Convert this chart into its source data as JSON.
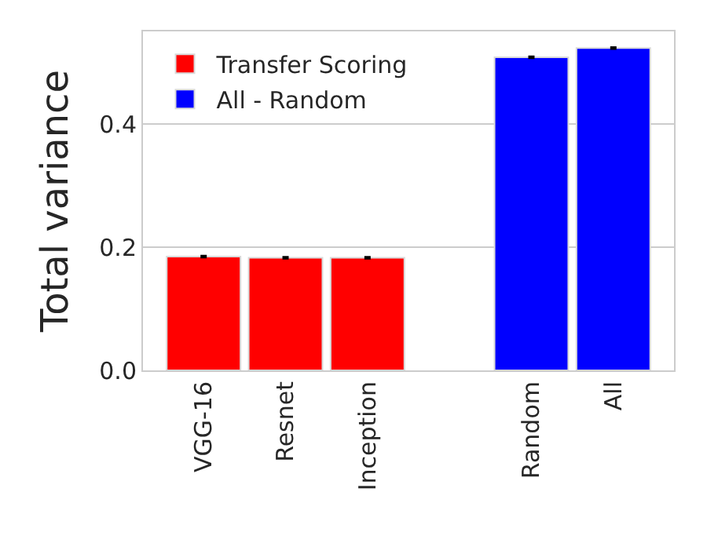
{
  "chart_data": {
    "type": "bar",
    "ylabel": "Total variance",
    "categories": [
      "VGG-16",
      "Resnet",
      "Inception",
      null,
      "Random",
      "All"
    ],
    "series": [
      {
        "name": "Transfer Scoring",
        "color": "#ff0000",
        "values": [
          0.185,
          0.183,
          0.183,
          null,
          null,
          null
        ],
        "errors": [
          0.001,
          0.001,
          0.001,
          null,
          null,
          null
        ]
      },
      {
        "name": "All - Random",
        "color": "#0000ff",
        "values": [
          null,
          null,
          null,
          null,
          0.509,
          0.524
        ],
        "errors": [
          null,
          null,
          null,
          null,
          0.001,
          0.001
        ]
      }
    ],
    "ylim": [
      0,
      0.551
    ],
    "yticks": [
      {
        "value": 0,
        "label": "0.0"
      },
      0.2,
      0.4
    ],
    "grid": "y",
    "legend": "top left"
  }
}
